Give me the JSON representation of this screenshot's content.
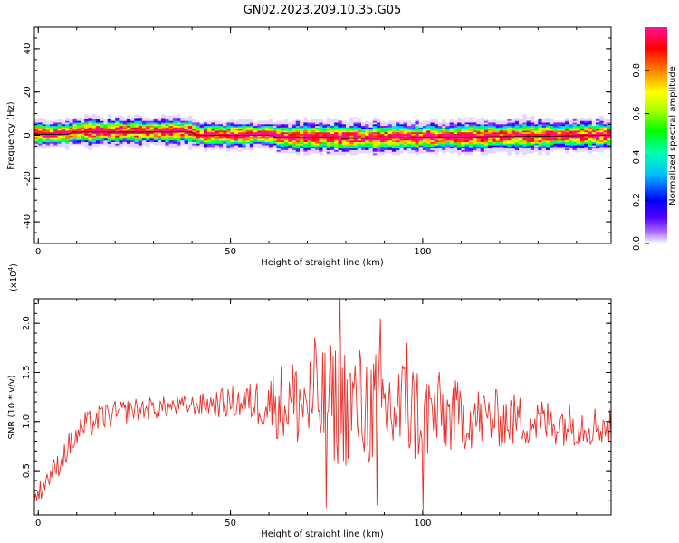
{
  "title": "GN02.2023.209.10.35.G05",
  "colors": {
    "snr_line": "#e8312b",
    "frame": "#000000",
    "center_line": "#000000"
  },
  "chart_data": [
    {
      "type": "heatmap",
      "xlabel": "Height of straight line (km)",
      "ylabel": "Frequency (Hz)",
      "xlim": [
        -1,
        149
      ],
      "ylim": [
        -50,
        50
      ],
      "x_ticks": [
        0,
        50,
        100
      ],
      "y_ticks": [
        -40,
        -20,
        0,
        20,
        40
      ],
      "colorbar": {
        "label": "Normalized spectral amplitude",
        "range": [
          0,
          1
        ],
        "ticks": [
          0.0,
          0.2,
          0.4,
          0.6,
          0.8
        ],
        "colormap": [
          "#ffffff",
          "#b070ff",
          "#5000ff",
          "#0000ff",
          "#00c0ff",
          "#00ffb0",
          "#00ff00",
          "#b0ff00",
          "#ffff00",
          "#ff8000",
          "#ff0000",
          "#ff1090"
        ]
      },
      "center_frequency": [
        {
          "x": -1,
          "y": 0.5
        },
        {
          "x": 8,
          "y": 0.5
        },
        {
          "x": 9,
          "y": 1.5
        },
        {
          "x": 40,
          "y": 1.5
        },
        {
          "x": 41,
          "y": 0
        },
        {
          "x": 61,
          "y": 0
        },
        {
          "x": 62,
          "y": -1
        },
        {
          "x": 78,
          "y": -1
        },
        {
          "x": 79,
          "y": -1.5
        },
        {
          "x": 149,
          "y": 0
        }
      ]
    },
    {
      "type": "line",
      "xlabel": "Height of straight line (km)",
      "ylabel": "SNR (10 * v/v)",
      "y_multiplier": "(x10",
      "y_multiplier_exp": "4",
      "y_multiplier_close": ")",
      "xlim": [
        -1,
        149
      ],
      "ylim": [
        0.05,
        2.25
      ],
      "x_ticks": [
        0,
        50,
        100
      ],
      "y_ticks": [
        0.5,
        1.0,
        1.5,
        2.0
      ],
      "series": [
        {
          "anchors": [
            {
              "x": -1,
              "y": 0.2
            },
            {
              "x": 2,
              "y": 0.4
            },
            {
              "x": 5,
              "y": 0.55
            },
            {
              "x": 8,
              "y": 0.75
            },
            {
              "x": 12,
              "y": 0.95
            },
            {
              "x": 17,
              "y": 1.05
            },
            {
              "x": 25,
              "y": 1.12
            },
            {
              "x": 35,
              "y": 1.15
            },
            {
              "x": 45,
              "y": 1.18
            },
            {
              "x": 55,
              "y": 1.2
            },
            {
              "x": 65,
              "y": 1.2
            },
            {
              "x": 78,
              "y": 1.18
            },
            {
              "x": 95,
              "y": 1.1
            },
            {
              "x": 110,
              "y": 1.05
            },
            {
              "x": 130,
              "y": 1.0
            },
            {
              "x": 149,
              "y": 0.95
            }
          ],
          "spread": [
            {
              "x": -1,
              "y": 0.1
            },
            {
              "x": 10,
              "y": 0.15
            },
            {
              "x": 40,
              "y": 0.1
            },
            {
              "x": 55,
              "y": 0.2
            },
            {
              "x": 65,
              "y": 0.45
            },
            {
              "x": 78,
              "y": 0.65
            },
            {
              "x": 95,
              "y": 0.6
            },
            {
              "x": 110,
              "y": 0.35
            },
            {
              "x": 130,
              "y": 0.25
            },
            {
              "x": 149,
              "y": 0.2
            }
          ],
          "peaks": [
            {
              "x": 78.5,
              "y": 2.25
            },
            {
              "x": 89,
              "y": 2.05
            },
            {
              "x": 72,
              "y": 1.85
            },
            {
              "x": 96,
              "y": 1.8
            },
            {
              "x": 75,
              "y": 0.12
            },
            {
              "x": 100,
              "y": 0.1
            },
            {
              "x": 88,
              "y": 0.15
            }
          ]
        }
      ]
    }
  ]
}
